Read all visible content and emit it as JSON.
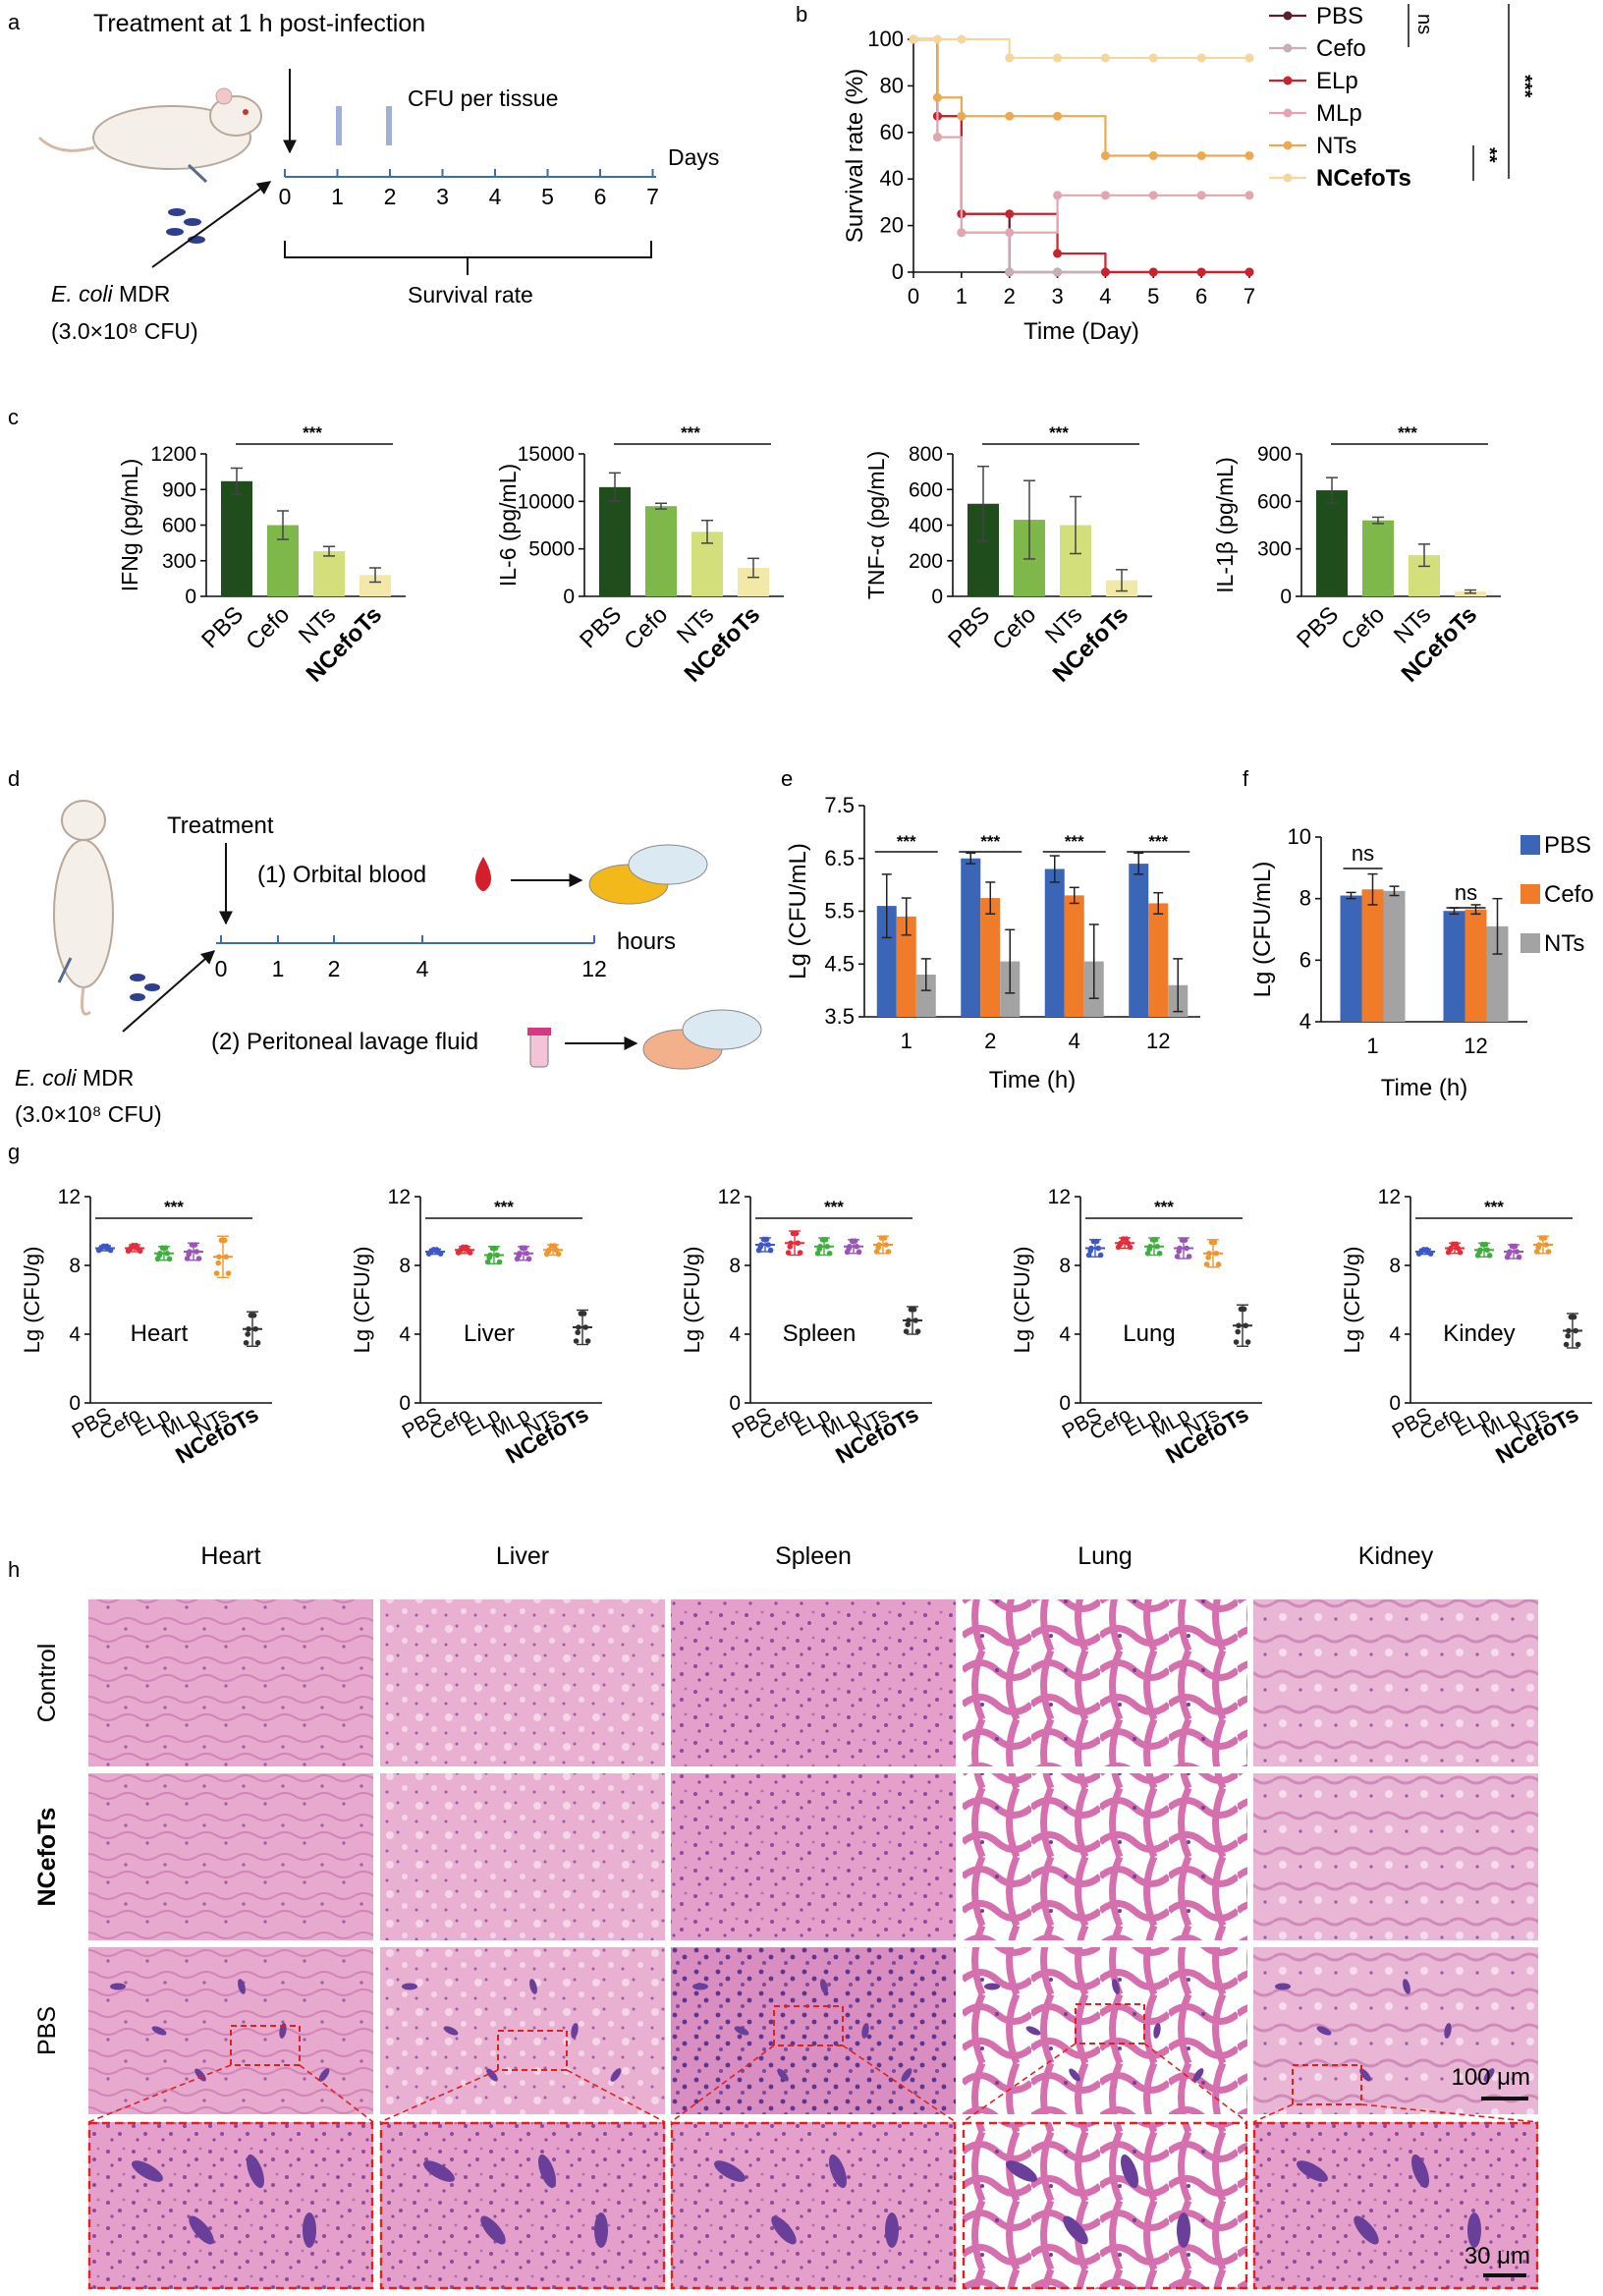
{
  "panel_labels": [
    "a",
    "b",
    "c",
    "d",
    "e",
    "f",
    "g",
    "h"
  ],
  "panel_a": {
    "title": "Treatment at 1 h post-infection",
    "cfu_label": "CFU per tissue",
    "days_label": "Days",
    "survival_label": "Survival rate",
    "days": [
      "0",
      "1",
      "2",
      "3",
      "4",
      "5",
      "6",
      "7"
    ],
    "bacteria_label": "E. coli",
    "bacteria_suffix": " MDR",
    "dose": "(3.0×10⁸ CFU)"
  },
  "panel_d": {
    "treatment_label": "Treatment",
    "blood_label": "(1) Orbital blood",
    "lavage_label": "(2) Peritoneal lavage fluid",
    "hours_label": "hours",
    "hours": [
      "0",
      "1",
      "2",
      "4",
      "12"
    ],
    "bacteria_label": "E. coli",
    "bacteria_suffix": " MDR",
    "dose": "(3.0×10⁸ CFU)"
  },
  "colors": {
    "PBS": "#5a1f2b",
    "Cefo": "#c8aeb6",
    "ELp": "#c8232f",
    "MLp": "#e1a7b1",
    "NTs": "#eda94f",
    "NCefoTs": "#f5d79e",
    "bar_dark": "#1f4d1c",
    "bar_mid": "#7fb84a",
    "bar_light": "#d3df7a",
    "bar_pale": "#f2e9a9",
    "e_PBS": "#3b66b8",
    "e_Cefo": "#f07c2a",
    "e_NTs": "#a3a3a3",
    "g_PBS": "#3c58c4",
    "g_Cefo": "#e52d3a",
    "g_ELp": "#3fae3e",
    "g_MLp": "#9b55b5",
    "g_NTs": "#f0962e",
    "g_NCefoTs": "#333333",
    "he_base": "#e6a3cc",
    "he_dark": "#c971a8",
    "he_nuclei": "#6a3f9a",
    "dashed": "#e02020"
  },
  "chart_data": [
    {
      "id": "b",
      "type": "line",
      "xlabel": "Time (Day)",
      "ylabel": "Survival rate (%)",
      "xlim": [
        0,
        7
      ],
      "ylim": [
        0,
        100
      ],
      "xticks": [
        0,
        1,
        2,
        3,
        4,
        5,
        6,
        7
      ],
      "yticks": [
        0,
        20,
        40,
        60,
        80,
        100
      ],
      "series": [
        {
          "name": "PBS",
          "x": [
            0,
            0.5,
            1,
            2,
            3,
            4,
            5,
            6,
            7
          ],
          "y": [
            100,
            67,
            25,
            0,
            0,
            0,
            0,
            0,
            0
          ]
        },
        {
          "name": "Cefo",
          "x": [
            0,
            0.5,
            1,
            2,
            3,
            4,
            5,
            6,
            7
          ],
          "y": [
            100,
            58,
            17,
            0,
            0,
            0,
            0,
            0,
            0
          ]
        },
        {
          "name": "ELp",
          "x": [
            0,
            0.5,
            1,
            2,
            3,
            4,
            5,
            6,
            7
          ],
          "y": [
            100,
            67,
            25,
            25,
            8,
            0,
            0,
            0,
            0
          ]
        },
        {
          "name": "MLp",
          "x": [
            0,
            0.5,
            1,
            2,
            3,
            4,
            5,
            6,
            7
          ],
          "y": [
            100,
            58,
            17,
            17,
            33,
            33,
            33,
            33,
            33
          ]
        },
        {
          "name": "NTs",
          "x": [
            0,
            0.5,
            1,
            2,
            3,
            4,
            5,
            6,
            7
          ],
          "y": [
            100,
            75,
            67,
            67,
            67,
            50,
            50,
            50,
            50
          ]
        },
        {
          "name": "NCefoTs",
          "x": [
            0,
            0.5,
            1,
            2,
            3,
            4,
            5,
            6,
            7
          ],
          "y": [
            100,
            100,
            100,
            92,
            92,
            92,
            92,
            92,
            92
          ]
        }
      ],
      "legend": [
        "PBS",
        "Cefo",
        "ELp",
        "MLp",
        "NTs",
        "NCefoTs"
      ],
      "annotations": [
        "ns",
        "**",
        "***"
      ]
    },
    {
      "id": "c",
      "type": "bar",
      "categories": [
        "PBS",
        "Cefo",
        "NTs",
        "NCefoTs"
      ],
      "subplots": [
        {
          "ylabel": "IFNg (pg/mL)",
          "ylim": [
            0,
            1200
          ],
          "yticks": [
            0,
            300,
            600,
            900,
            1200
          ],
          "values": [
            970,
            600,
            380,
            180
          ],
          "errors": [
            110,
            120,
            40,
            60
          ],
          "sig": "***"
        },
        {
          "ylabel": "IL-6 (pg/mL)",
          "ylim": [
            0,
            15000
          ],
          "yticks": [
            0,
            5000,
            10000,
            15000
          ],
          "values": [
            11500,
            9500,
            6800,
            3000
          ],
          "errors": [
            1500,
            300,
            1200,
            1000
          ],
          "sig": "***"
        },
        {
          "ylabel": "TNF-α (pg/mL)",
          "ylim": [
            0,
            800
          ],
          "yticks": [
            0,
            200,
            400,
            600,
            800
          ],
          "values": [
            520,
            430,
            400,
            90
          ],
          "errors": [
            210,
            220,
            160,
            60
          ],
          "sig": "***"
        },
        {
          "ylabel": "IL-1β (pg/mL)",
          "ylim": [
            0,
            900
          ],
          "yticks": [
            0,
            300,
            600,
            900
          ],
          "values": [
            670,
            480,
            260,
            30
          ],
          "errors": [
            80,
            20,
            70,
            10
          ],
          "sig": "***"
        }
      ]
    },
    {
      "id": "e",
      "type": "bar",
      "xlabel": "Time (h)",
      "ylabel": "Lg (CFU/mL)",
      "categories": [
        "1",
        "2",
        "4",
        "12"
      ],
      "ylim": [
        3.5,
        7.5
      ],
      "yticks": [
        3.5,
        4.5,
        5.5,
        6.5,
        7.5
      ],
      "series": [
        {
          "name": "PBS",
          "values": [
            5.6,
            6.5,
            6.3,
            6.4
          ],
          "errors": [
            0.6,
            0.1,
            0.25,
            0.2
          ]
        },
        {
          "name": "Cefo",
          "values": [
            5.4,
            5.75,
            5.8,
            5.65
          ],
          "errors": [
            0.35,
            0.3,
            0.15,
            0.2
          ]
        },
        {
          "name": "NTs",
          "values": [
            4.3,
            4.55,
            4.55,
            4.1
          ],
          "errors": [
            0.3,
            0.6,
            0.7,
            0.5
          ]
        }
      ],
      "sig": [
        "***",
        "***",
        "***",
        "***"
      ]
    },
    {
      "id": "f",
      "type": "bar",
      "xlabel": "Time (h)",
      "ylabel": "Lg (CFU/mL)",
      "categories": [
        "1",
        "12"
      ],
      "ylim": [
        4,
        10
      ],
      "yticks": [
        4,
        6,
        8,
        10
      ],
      "series": [
        {
          "name": "PBS",
          "values": [
            8.1,
            7.6
          ],
          "errors": [
            0.1,
            0.1
          ]
        },
        {
          "name": "Cefo",
          "values": [
            8.3,
            7.65
          ],
          "errors": [
            0.5,
            0.15
          ]
        },
        {
          "name": "NTs",
          "values": [
            8.25,
            7.1
          ],
          "errors": [
            0.15,
            0.9
          ]
        }
      ],
      "sig": [
        "ns",
        "ns"
      ],
      "legend": [
        "PBS",
        "Cefo",
        "NTs"
      ]
    },
    {
      "id": "g",
      "type": "scatter",
      "ylabel": "Lg (CFU/g)",
      "ylim": [
        0,
        12
      ],
      "yticks": [
        0,
        4,
        8,
        12
      ],
      "categories": [
        "PBS",
        "Cefo",
        "ELp",
        "MLp",
        "NTs",
        "NCefoTs"
      ],
      "subplots": [
        {
          "label": "Heart",
          "means": [
            9.0,
            9.0,
            8.7,
            8.8,
            8.5,
            4.3
          ],
          "sds": [
            0.15,
            0.2,
            0.4,
            0.5,
            1.2,
            1.0
          ],
          "sig": "***"
        },
        {
          "label": "Liver",
          "means": [
            8.8,
            8.9,
            8.6,
            8.7,
            8.9,
            4.4
          ],
          "sds": [
            0.15,
            0.2,
            0.5,
            0.4,
            0.3,
            1.0
          ],
          "sig": "***"
        },
        {
          "label": "Spleen",
          "means": [
            9.2,
            9.3,
            9.1,
            9.1,
            9.2,
            4.8
          ],
          "sds": [
            0.4,
            0.7,
            0.5,
            0.4,
            0.5,
            0.8
          ],
          "sig": "***"
        },
        {
          "label": "Lung",
          "means": [
            9.0,
            9.3,
            9.1,
            9.0,
            8.7,
            4.5
          ],
          "sds": [
            0.5,
            0.3,
            0.5,
            0.6,
            0.8,
            1.2
          ],
          "sig": "***"
        },
        {
          "label": "Kindey",
          "means": [
            8.8,
            9.0,
            8.9,
            8.8,
            9.2,
            4.2
          ],
          "sds": [
            0.15,
            0.3,
            0.4,
            0.4,
            0.5,
            1.0
          ],
          "sig": "***"
        }
      ]
    }
  ],
  "panel_h": {
    "columns": [
      "Heart",
      "Liver",
      "Spleen",
      "Lung",
      "Kidney"
    ],
    "rows": [
      "Control",
      "NCefoTs",
      "PBS"
    ],
    "scale_large": "100 μm",
    "scale_small": "30 μm"
  }
}
